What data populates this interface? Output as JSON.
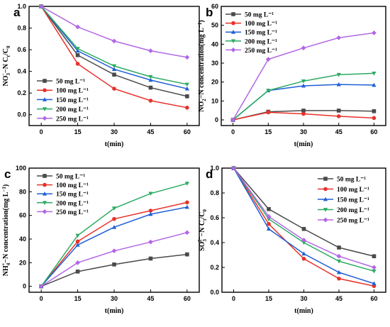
{
  "series_colors": [
    "#4a4a4a",
    "#e8322a",
    "#1f5fd6",
    "#2cab63",
    "#b266e6"
  ],
  "series_markers": [
    "square",
    "circle",
    "triangle-up",
    "triangle-down",
    "diamond"
  ],
  "chart_data": [
    {
      "panel": "a",
      "type": "line",
      "xlabel": "t(min)",
      "ylabel_parts": [
        "NO",
        "3",
        "−",
        "−N C",
        "t",
        "/C",
        "0"
      ],
      "x": [
        0,
        15,
        30,
        45,
        60
      ],
      "xlim": [
        -5,
        65
      ],
      "ylim": [
        -0.1,
        1.0
      ],
      "yticks": [
        "0.0",
        "0.2",
        "0.4",
        "0.6",
        "0.8",
        "1.0"
      ],
      "ytick_values": [
        0.0,
        0.2,
        0.4,
        0.6,
        0.8,
        1.0
      ],
      "xticks": [
        "0",
        "15",
        "30",
        "45",
        "60"
      ],
      "legend_position": "bottom-left",
      "legend_units": "mg L⁻¹",
      "series": [
        {
          "name": "50",
          "values": [
            1.0,
            0.55,
            0.37,
            0.25,
            0.17
          ]
        },
        {
          "name": "100",
          "values": [
            1.0,
            0.47,
            0.24,
            0.13,
            0.065
          ]
        },
        {
          "name": "150",
          "values": [
            1.0,
            0.59,
            0.42,
            0.32,
            0.24
          ]
        },
        {
          "name": "200",
          "values": [
            1.0,
            0.61,
            0.45,
            0.35,
            0.28
          ]
        },
        {
          "name": "250",
          "values": [
            1.0,
            0.81,
            0.68,
            0.59,
            0.53
          ]
        }
      ]
    },
    {
      "panel": "b",
      "type": "line",
      "xlabel": "t(min)",
      "ylabel_parts": [
        "NO",
        "2",
        "−",
        "−N concentration(mg L",
        "",
        "−1",
        ")"
      ],
      "x": [
        0,
        15,
        30,
        45,
        60
      ],
      "xlim": [
        -5,
        65
      ],
      "ylim": [
        -3,
        60
      ],
      "yticks": [
        "0",
        "10",
        "20",
        "30",
        "40",
        "50",
        "60"
      ],
      "ytick_values": [
        0,
        10,
        20,
        30,
        40,
        50,
        60
      ],
      "xticks": [
        "0",
        "15",
        "30",
        "45",
        "60"
      ],
      "legend_position": "top-left",
      "legend_units": "mg L⁻¹",
      "series": [
        {
          "name": "50",
          "values": [
            0,
            4.3,
            4.9,
            4.9,
            4.6
          ]
        },
        {
          "name": "100",
          "values": [
            0,
            4.0,
            3.2,
            1.9,
            1.0
          ]
        },
        {
          "name": "150",
          "values": [
            0,
            15.5,
            18.0,
            18.7,
            18.4
          ]
        },
        {
          "name": "200",
          "values": [
            0,
            15.5,
            20.5,
            23.9,
            24.6
          ]
        },
        {
          "name": "250",
          "values": [
            0,
            32.0,
            38.0,
            43.4,
            46.0
          ]
        }
      ]
    },
    {
      "panel": "c",
      "type": "line",
      "xlabel": "t(min)",
      "ylabel_parts": [
        "NH",
        "4",
        "+",
        "−N concentration(mg L",
        "",
        "−1",
        ")"
      ],
      "x": [
        0,
        15,
        30,
        45,
        60
      ],
      "xlim": [
        -5,
        65
      ],
      "ylim": [
        -5,
        100
      ],
      "yticks": [
        "0",
        "20",
        "40",
        "60",
        "80",
        "100"
      ],
      "ytick_values": [
        0,
        20,
        40,
        60,
        80,
        100
      ],
      "xticks": [
        "0",
        "15",
        "30",
        "45",
        "60"
      ],
      "legend_position": "top-left",
      "legend_units": "mg L⁻¹",
      "series": [
        {
          "name": "50",
          "values": [
            0,
            12.5,
            18.5,
            23.5,
            27.0
          ]
        },
        {
          "name": "100",
          "values": [
            0,
            38.0,
            57.0,
            64.0,
            71.0
          ]
        },
        {
          "name": "150",
          "values": [
            0,
            35.0,
            50.0,
            61.0,
            67.0
          ]
        },
        {
          "name": "200",
          "values": [
            0,
            43.0,
            66.0,
            78.5,
            87.0
          ]
        },
        {
          "name": "250",
          "values": [
            0,
            20.0,
            30.0,
            37.5,
            45.5
          ]
        }
      ]
    },
    {
      "panel": "d",
      "type": "line",
      "xlabel": "t(min)",
      "ylabel_parts": [
        "SO",
        "3",
        "2−",
        "−N C",
        "t",
        "/C",
        "0"
      ],
      "x": [
        0,
        15,
        30,
        45,
        60
      ],
      "xlim": [
        -5,
        65
      ],
      "ylim": [
        0,
        1.0
      ],
      "yticks": [
        "0.0",
        "0.2",
        "0.4",
        "0.6",
        "0.8",
        "1.0"
      ],
      "ytick_values": [
        0.0,
        0.2,
        0.4,
        0.6,
        0.8,
        1.0
      ],
      "xticks": [
        "0",
        "15",
        "30",
        "45",
        "60"
      ],
      "legend_position": "top-right",
      "legend_units": "mg L⁻¹",
      "series": [
        {
          "name": "50",
          "values": [
            1.0,
            0.67,
            0.51,
            0.36,
            0.29
          ]
        },
        {
          "name": "100",
          "values": [
            1.0,
            0.55,
            0.27,
            0.11,
            0.05
          ]
        },
        {
          "name": "150",
          "values": [
            1.0,
            0.51,
            0.31,
            0.16,
            0.07
          ]
        },
        {
          "name": "200",
          "values": [
            1.0,
            0.59,
            0.4,
            0.25,
            0.17
          ]
        },
        {
          "name": "250",
          "values": [
            1.0,
            0.61,
            0.42,
            0.29,
            0.2
          ]
        }
      ]
    }
  ]
}
